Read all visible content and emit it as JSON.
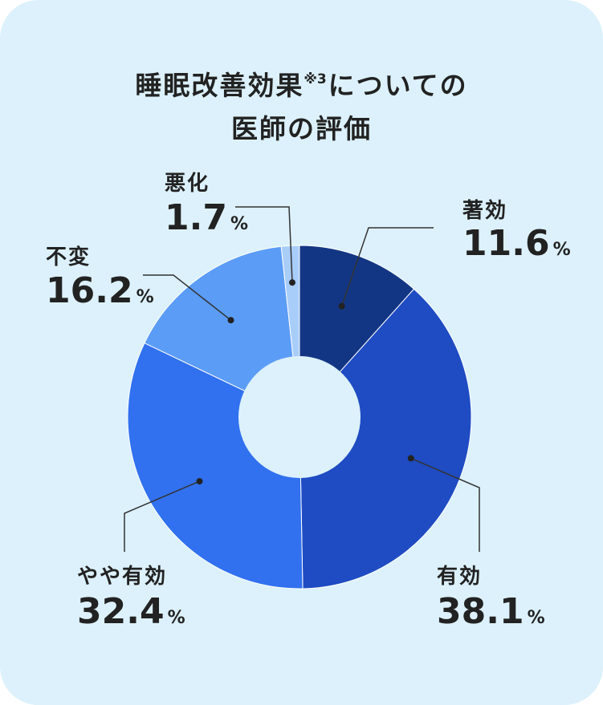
{
  "chart_data": {
    "type": "pie",
    "title_line1_main": "睡眠改善効果",
    "title_note": "※3",
    "title_line1_rest": "についての",
    "title_line2": "医師の評価",
    "unit": "%",
    "categories": [
      "著効",
      "有効",
      "やや有効",
      "不変",
      "悪化"
    ],
    "values": [
      11.6,
      38.1,
      32.4,
      16.2,
      1.7
    ],
    "value_labels": [
      "11.6",
      "38.1",
      "32.4",
      "16.2",
      "1.7"
    ],
    "colors": [
      "#133684",
      "#1f4cc3",
      "#3171ef",
      "#5b9cf6",
      "#a9cdf9"
    ],
    "hole_color": "#dcf1fb",
    "legend": "none"
  }
}
